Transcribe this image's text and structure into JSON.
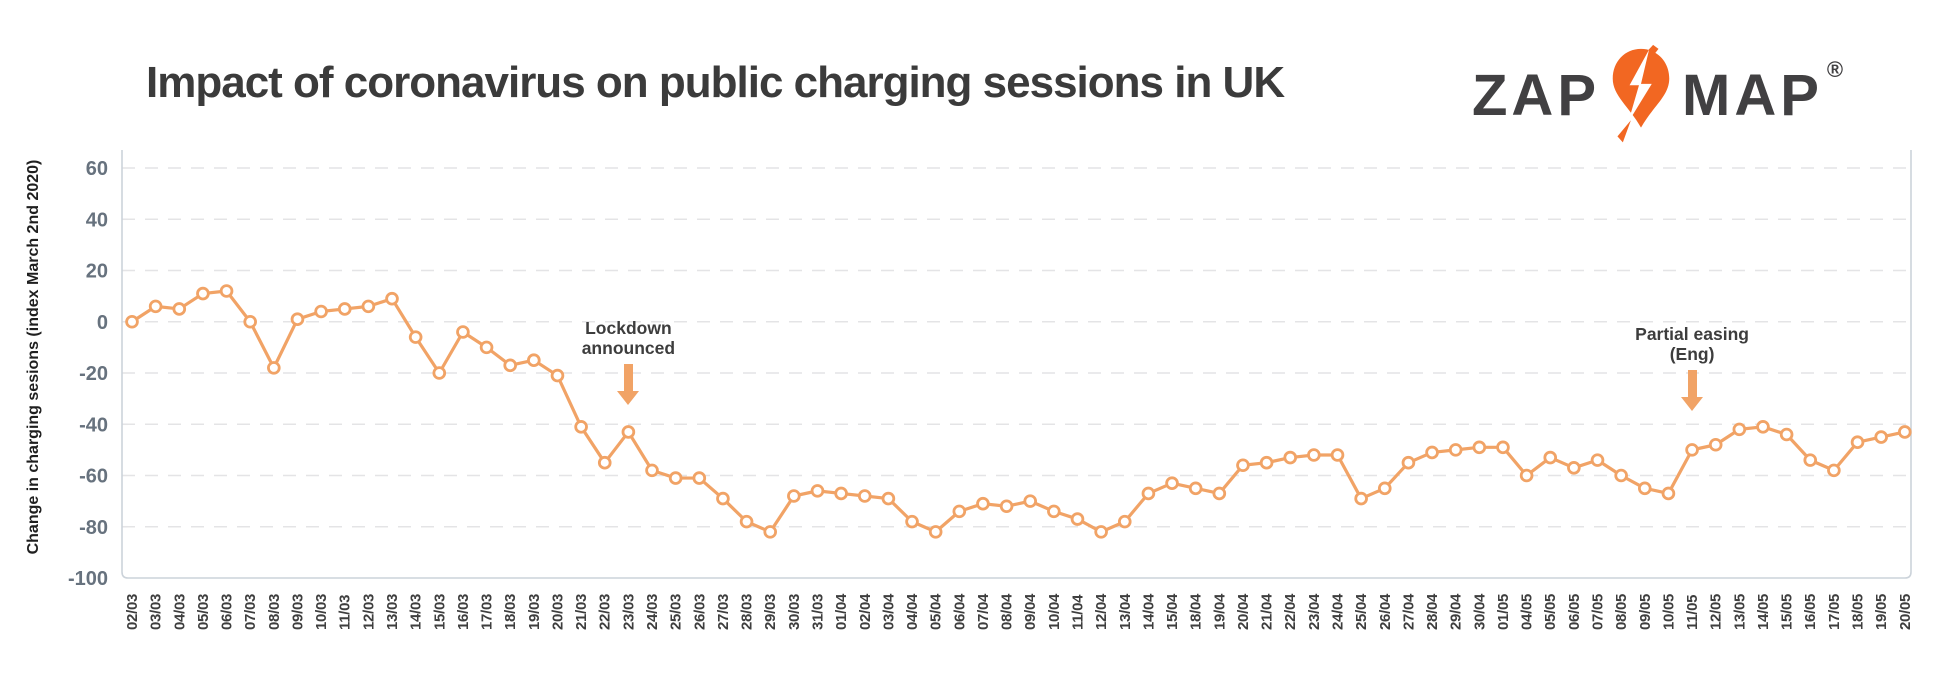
{
  "header": {
    "title": "Impact of coronavirus on public charging sessions in UK",
    "logo": {
      "zap": "ZAP",
      "map": "MAP",
      "registered": "®"
    }
  },
  "y_axis_title": "Change in charging sesions (index March 2nd 2020)",
  "annotations": [
    {
      "line1": "Lockdown",
      "line2": "announced",
      "date": "23/03"
    },
    {
      "line1": "Partial easing",
      "line2": "(Eng)",
      "date": "11/05"
    }
  ],
  "colors": {
    "line": "#f1a366",
    "marker_fill": "#ffffff",
    "grid": "#e4e4e6",
    "axis_border": "#ccd3da",
    "ytick_text": "#67727e",
    "xtick_text": "#3e3e3e",
    "title_text": "#3b3b3b",
    "pin_orange": "#f26722",
    "logo_text": "#414042"
  },
  "chart_data": {
    "type": "line",
    "title": "Impact of coronavirus on public charging sessions in UK",
    "ylabel": "Change in charging sesions (index March 2nd 2020)",
    "ylim": [
      -100,
      60
    ],
    "yticks": [
      60,
      40,
      20,
      0,
      -20,
      -40,
      -60,
      -80,
      -100
    ],
    "grid": "horizontal-dashed",
    "legend": "none",
    "marker": "open-circle",
    "x": [
      "02/03",
      "03/03",
      "04/03",
      "05/03",
      "06/03",
      "07/03",
      "08/03",
      "09/03",
      "10/03",
      "11/03",
      "12/03",
      "13/03",
      "14/03",
      "15/03",
      "16/03",
      "17/03",
      "18/03",
      "19/03",
      "20/03",
      "21/03",
      "22/03",
      "23/03",
      "24/03",
      "25/03",
      "26/03",
      "27/03",
      "28/03",
      "29/03",
      "30/03",
      "31/03",
      "01/04",
      "02/04",
      "03/04",
      "04/04",
      "05/04",
      "06/04",
      "07/04",
      "08/04",
      "09/04",
      "10/04",
      "11/04",
      "12/04",
      "13/04",
      "14/04",
      "15/04",
      "18/04",
      "19/04",
      "20/04",
      "21/04",
      "22/04",
      "23/04",
      "24/04",
      "25/04",
      "26/04",
      "27/04",
      "28/04",
      "29/04",
      "30/04",
      "01/05",
      "04/05",
      "05/05",
      "06/05",
      "07/05",
      "08/05",
      "09/05",
      "10/05",
      "11/05",
      "12/05",
      "13/05",
      "14/05",
      "15/05",
      "16/05",
      "17/05",
      "18/05",
      "19/05",
      "20/05"
    ],
    "values": [
      0,
      6,
      5,
      11,
      12,
      0,
      -18,
      1,
      4,
      5,
      6,
      9,
      -6,
      -20,
      -4,
      -10,
      -17,
      -15,
      -21,
      -41,
      -55,
      -43,
      -58,
      -61,
      -61,
      -69,
      -78,
      -82,
      -68,
      -66,
      -67,
      -68,
      -69,
      -78,
      -82,
      -74,
      -71,
      -72,
      -70,
      -74,
      -77,
      -82,
      -78,
      -67,
      -63,
      -65,
      -67,
      -56,
      -55,
      -53,
      -52,
      -52,
      -69,
      -65,
      -55,
      -51,
      -50,
      -49,
      -49,
      -60,
      -53,
      -57,
      -54,
      -60,
      -65,
      -67,
      -50,
      -48,
      -42,
      -41,
      -44,
      -54,
      -58,
      -47,
      -45,
      -43
    ]
  }
}
